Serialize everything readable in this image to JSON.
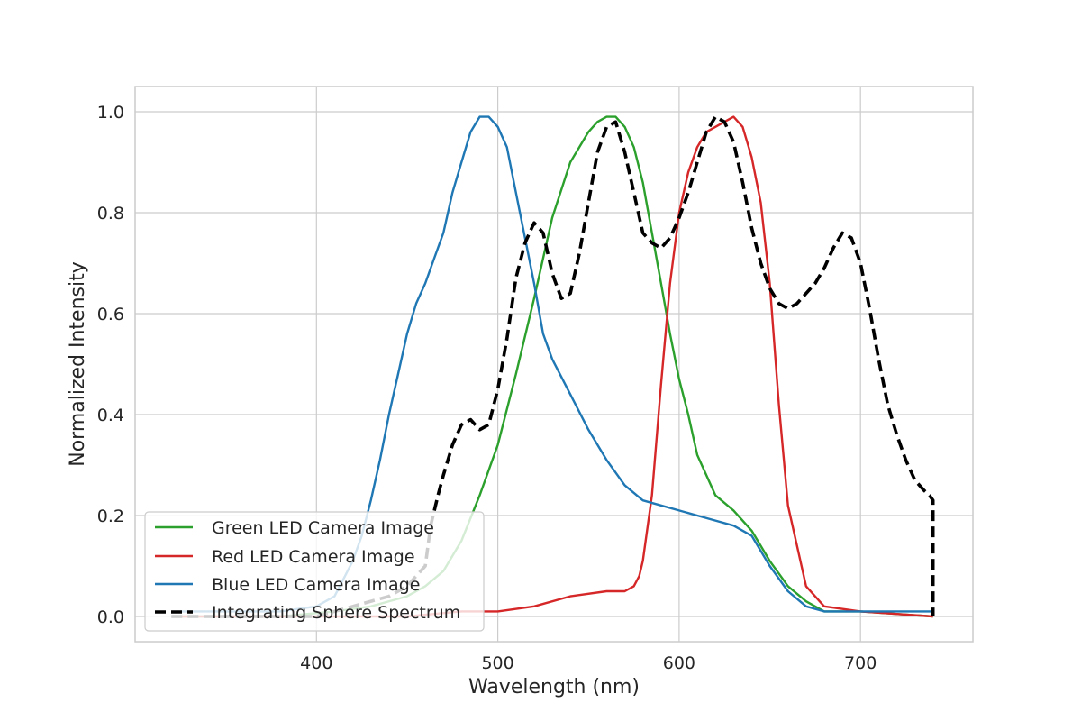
{
  "chart_data": {
    "type": "line",
    "xlabel": "Wavelength (nm)",
    "ylabel": "Normalized Intensity",
    "xlim": [
      300,
      762
    ],
    "ylim": [
      -0.05,
      1.05
    ],
    "x_ticks": [
      400,
      500,
      600,
      700
    ],
    "y_ticks": [
      0.0,
      0.2,
      0.4,
      0.6,
      0.8,
      1.0
    ],
    "x_tick_labels": [
      "400",
      "500",
      "600",
      "700"
    ],
    "y_tick_labels": [
      "0.0",
      "0.2",
      "0.4",
      "0.6",
      "0.8",
      "1.0"
    ],
    "grid": true,
    "legend_placement": "lower-left",
    "series": [
      {
        "name": "Green LED Camera Image",
        "color": "#2ca02c",
        "dash": "solid",
        "x": [
          320,
          380,
          410,
          430,
          450,
          460,
          470,
          480,
          490,
          500,
          510,
          520,
          530,
          540,
          550,
          555,
          560,
          565,
          570,
          575,
          580,
          585,
          590,
          595,
          600,
          605,
          610,
          620,
          630,
          640,
          650,
          660,
          670,
          680,
          700,
          740
        ],
        "y": [
          0.0,
          0.0,
          0.01,
          0.02,
          0.04,
          0.06,
          0.09,
          0.15,
          0.24,
          0.34,
          0.48,
          0.63,
          0.79,
          0.9,
          0.96,
          0.98,
          0.99,
          0.99,
          0.97,
          0.93,
          0.86,
          0.76,
          0.66,
          0.56,
          0.47,
          0.4,
          0.32,
          0.24,
          0.21,
          0.17,
          0.11,
          0.06,
          0.03,
          0.01,
          0.01,
          0.0
        ]
      },
      {
        "name": "Red LED Camera Image",
        "color": "#d62728",
        "dash": "solid",
        "x": [
          320,
          400,
          450,
          480,
          500,
          520,
          540,
          560,
          570,
          575,
          578,
          580,
          585,
          590,
          595,
          600,
          605,
          610,
          615,
          620,
          625,
          630,
          635,
          640,
          645,
          650,
          655,
          660,
          670,
          680,
          700,
          740
        ],
        "y": [
          0.0,
          0.0,
          0.0,
          0.01,
          0.01,
          0.02,
          0.04,
          0.05,
          0.05,
          0.06,
          0.08,
          0.11,
          0.24,
          0.46,
          0.66,
          0.8,
          0.88,
          0.93,
          0.96,
          0.97,
          0.98,
          0.99,
          0.97,
          0.91,
          0.82,
          0.66,
          0.42,
          0.22,
          0.06,
          0.02,
          0.01,
          0.0
        ]
      },
      {
        "name": "Blue LED Camera Image",
        "color": "#1f77b4",
        "dash": "solid",
        "x": [
          320,
          340,
          360,
          380,
          400,
          410,
          420,
          425,
          430,
          435,
          440,
          445,
          450,
          455,
          460,
          465,
          470,
          475,
          480,
          485,
          490,
          495,
          500,
          505,
          510,
          515,
          520,
          525,
          530,
          540,
          550,
          560,
          570,
          580,
          590,
          600,
          610,
          620,
          630,
          640,
          650,
          660,
          670,
          680,
          700,
          740
        ],
        "y": [
          0.01,
          0.01,
          0.01,
          0.01,
          0.02,
          0.04,
          0.11,
          0.16,
          0.23,
          0.31,
          0.4,
          0.48,
          0.56,
          0.62,
          0.66,
          0.71,
          0.76,
          0.84,
          0.9,
          0.96,
          0.99,
          0.99,
          0.97,
          0.93,
          0.84,
          0.75,
          0.66,
          0.56,
          0.51,
          0.44,
          0.37,
          0.31,
          0.26,
          0.23,
          0.22,
          0.21,
          0.2,
          0.19,
          0.18,
          0.16,
          0.1,
          0.05,
          0.02,
          0.01,
          0.01,
          0.01
        ]
      },
      {
        "name": "Integrating Sphere Spectrum",
        "color": "#000000",
        "dash": "dashed",
        "x": [
          320,
          400,
          420,
          440,
          450,
          460,
          463,
          467,
          470,
          475,
          480,
          485,
          490,
          495,
          500,
          505,
          510,
          515,
          520,
          525,
          530,
          535,
          540,
          545,
          550,
          555,
          560,
          565,
          570,
          575,
          580,
          585,
          590,
          595,
          600,
          605,
          610,
          615,
          620,
          625,
          630,
          635,
          640,
          645,
          650,
          655,
          660,
          665,
          670,
          675,
          680,
          685,
          690,
          695,
          700,
          705,
          710,
          715,
          720,
          725,
          730,
          735,
          738,
          740,
          740
        ],
        "y": [
          0.0,
          0.0,
          0.02,
          0.04,
          0.06,
          0.1,
          0.18,
          0.24,
          0.28,
          0.34,
          0.38,
          0.39,
          0.37,
          0.38,
          0.45,
          0.55,
          0.67,
          0.74,
          0.78,
          0.76,
          0.68,
          0.63,
          0.64,
          0.72,
          0.82,
          0.92,
          0.97,
          0.98,
          0.92,
          0.84,
          0.76,
          0.74,
          0.73,
          0.75,
          0.79,
          0.84,
          0.9,
          0.96,
          0.99,
          0.98,
          0.94,
          0.86,
          0.77,
          0.7,
          0.65,
          0.62,
          0.61,
          0.62,
          0.64,
          0.66,
          0.69,
          0.73,
          0.76,
          0.75,
          0.7,
          0.61,
          0.51,
          0.42,
          0.36,
          0.31,
          0.27,
          0.25,
          0.24,
          0.23,
          0.0
        ]
      }
    ]
  }
}
